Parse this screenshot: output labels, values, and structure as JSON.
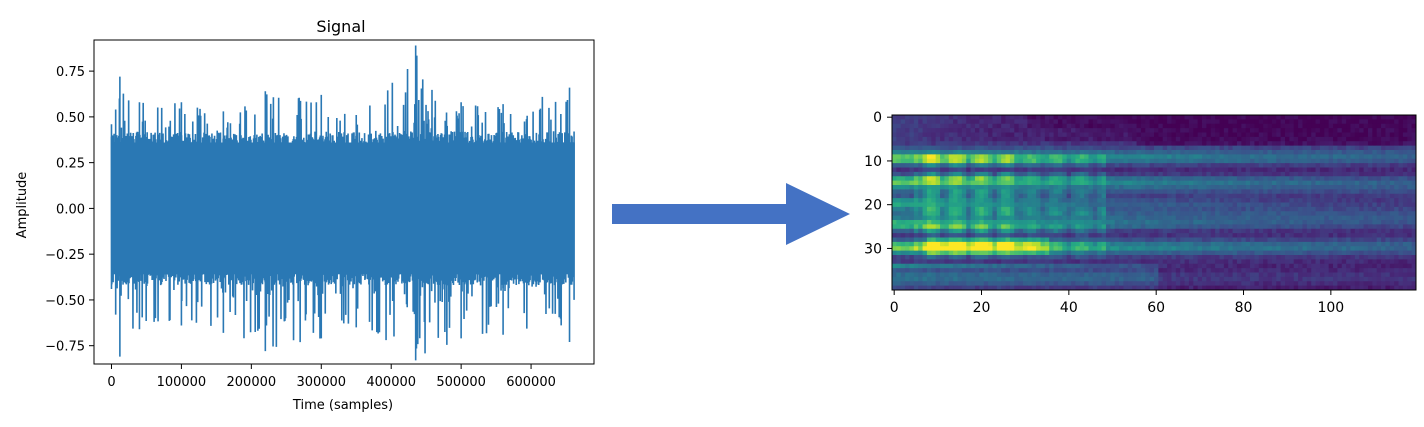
{
  "chart_data": [
    {
      "type": "line",
      "title": "Signal",
      "xlabel": "Time (samples)",
      "ylabel": "Amplitude",
      "xlim": [
        -25000,
        690000
      ],
      "ylim": [
        -0.85,
        0.92
      ],
      "x_ticks": [
        0,
        100000,
        200000,
        300000,
        400000,
        500000,
        600000
      ],
      "x_tick_labels": [
        "0",
        "100000",
        "200000",
        "300000",
        "400000",
        "500000",
        "600000"
      ],
      "y_ticks": [
        0.75,
        0.5,
        0.25,
        0.0,
        -0.25,
        -0.5,
        -0.75
      ],
      "y_tick_labels": [
        "0.75",
        "0.50",
        "0.25",
        "0.00",
        "−0.25",
        "−0.50",
        "−0.75"
      ],
      "grid": false,
      "color": "#2a78b4",
      "series": [
        {
          "x_range": [
            0,
            661500
          ],
          "envelope": [
            {
              "x": 0,
              "upper": 0.46,
              "lower": -0.44
            },
            {
              "x": 6000,
              "upper": 0.54,
              "lower": -0.58
            },
            {
              "x": 12000,
              "upper": 0.72,
              "lower": -0.81
            },
            {
              "x": 40000,
              "upper": 0.58,
              "lower": -0.66
            },
            {
              "x": 100000,
              "upper": 0.58,
              "lower": -0.64
            },
            {
              "x": 160000,
              "upper": 0.53,
              "lower": -0.68
            },
            {
              "x": 220000,
              "upper": 0.64,
              "lower": -0.78
            },
            {
              "x": 300000,
              "upper": 0.62,
              "lower": -0.71
            },
            {
              "x": 350000,
              "upper": 0.51,
              "lower": -0.65
            },
            {
              "x": 435000,
              "upper": 0.89,
              "lower": -0.83
            },
            {
              "x": 500000,
              "upper": 0.58,
              "lower": -0.71
            },
            {
              "x": 560000,
              "upper": 0.57,
              "lower": -0.69
            },
            {
              "x": 655000,
              "upper": 0.66,
              "lower": -0.73
            },
            {
              "x": 661500,
              "upper": 0.42,
              "lower": -0.5
            }
          ]
        }
      ]
    },
    {
      "type": "heatmap",
      "title": "",
      "colormap": "viridis",
      "x_ticks": [
        0,
        20,
        40,
        60,
        80,
        100
      ],
      "x_tick_labels": [
        "0",
        "20",
        "40",
        "60",
        "80",
        "100"
      ],
      "y_ticks": [
        0,
        10,
        20,
        30
      ],
      "y_tick_labels": [
        "0",
        "10",
        "20",
        "30"
      ],
      "n_cols": 120,
      "n_rows": 40,
      "xlim": [
        -0.5,
        119.5
      ],
      "ylim": [
        39.5,
        -0.5
      ]
    }
  ],
  "arrow": {
    "color": "#4472c4"
  }
}
